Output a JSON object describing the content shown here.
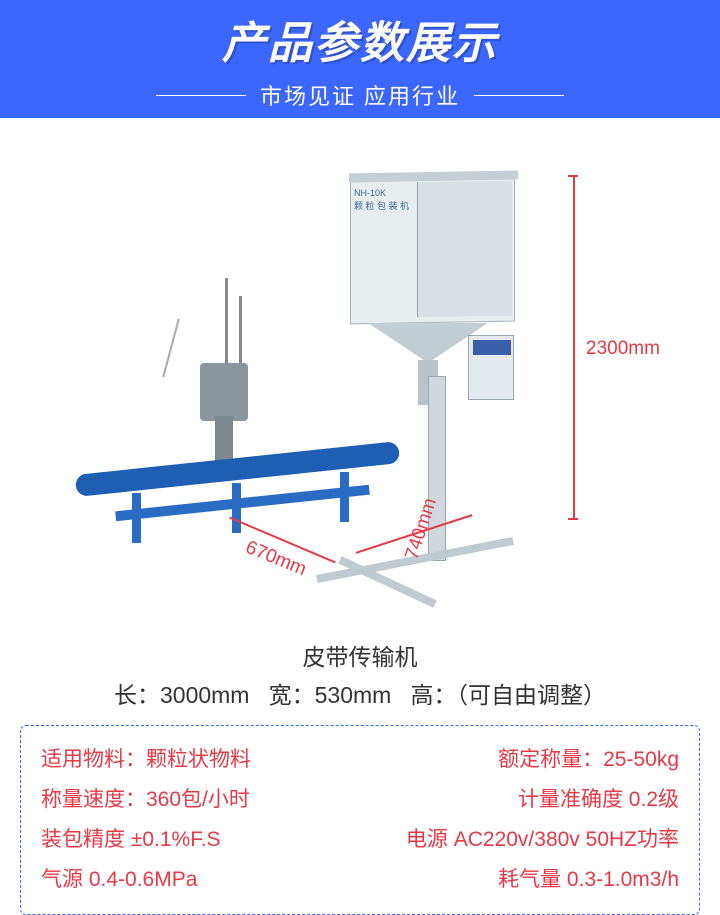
{
  "banner": {
    "title": "产品参数展示",
    "subtitle": "市场见证  应用行业",
    "bg_color": "#3b66ff",
    "title_fontsize": 44,
    "subtitle_fontsize": 22
  },
  "machine": {
    "model_line1": "NH-10K",
    "model_line2": "颗 粒 包 装 机",
    "cabinet_color": "#e8edf0",
    "conveyor_color": "#1e5fb3",
    "frame_color": "#2a6cc4",
    "sewing_color": "#8a959e"
  },
  "dimensions": {
    "height_label": "2300mm",
    "width_label": "670mm",
    "depth_label": "740mm",
    "line_color": "#e63946",
    "label_fontsize": 19
  },
  "belt": {
    "name": "皮带传输机",
    "length_label": "长：3000mm",
    "width_label": "宽：530mm",
    "height_label": "高：（可自由调整）",
    "fontsize": 23
  },
  "specs": {
    "border_color": "#3b66ff",
    "text_color": "#e63946",
    "fontsize": 21,
    "rows": [
      {
        "left": "适用物料：颗粒状物料",
        "right": "额定称量：25-50kg"
      },
      {
        "left": "称量速度：360包/小时",
        "right": "计量准确度 0.2级"
      },
      {
        "left": "装包精度 ±0.1%F.S",
        "right": "电源 AC220v/380v 50HZ功率"
      },
      {
        "left": "气源 0.4-0.6MPa",
        "right": "耗气量 0.3-1.0m3/h"
      }
    ]
  }
}
